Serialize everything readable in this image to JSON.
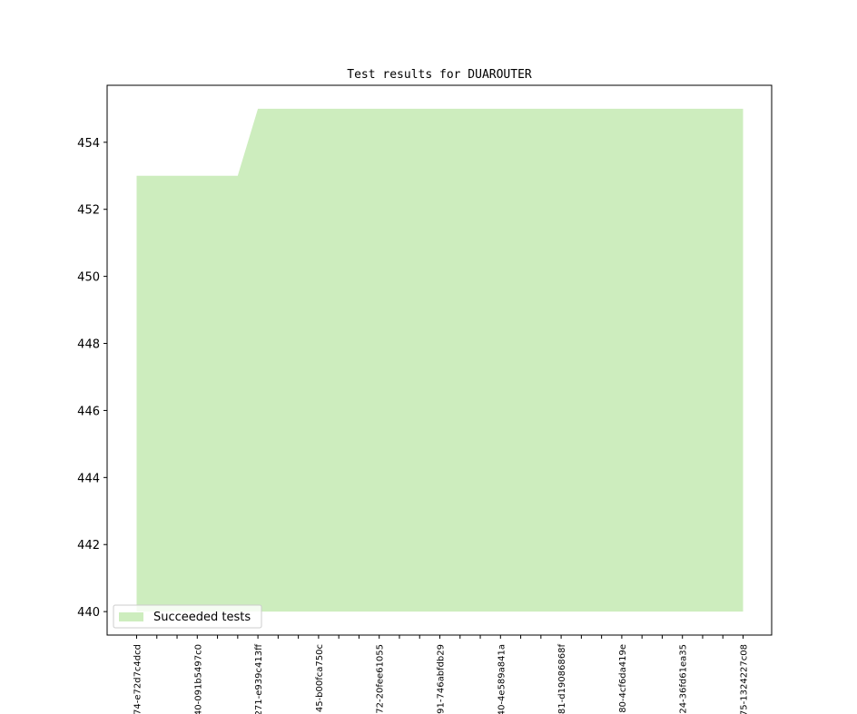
{
  "chart_data": {
    "type": "area",
    "title": "Test results for DUAROUTER",
    "xlabel": "",
    "ylabel": "",
    "ylim": [
      439.3,
      455.7
    ],
    "baseline": 440,
    "yticks": [
      440,
      442,
      444,
      446,
      448,
      450,
      452,
      454
    ],
    "x_tick_count": 31,
    "x_labels": [
      {
        "index": 0,
        "label": "74-e72d7c4dcd"
      },
      {
        "index": 3,
        "label": "40-091b5497c0"
      },
      {
        "index": 6,
        "label": "271-e939c413ff"
      },
      {
        "index": 9,
        "label": "45-b00fca750c"
      },
      {
        "index": 12,
        "label": "72-20fee61055"
      },
      {
        "index": 15,
        "label": "91-746abfdb29"
      },
      {
        "index": 18,
        "label": "40-4e589a841a"
      },
      {
        "index": 21,
        "label": "81-d19086868f"
      },
      {
        "index": 24,
        "label": "80-4cf6da419e"
      },
      {
        "index": 27,
        "label": "24-36fd61ea35"
      },
      {
        "index": 30,
        "label": "75-1324227c08"
      }
    ],
    "series": [
      {
        "name": "Succeeded tests",
        "color": "#cdedbe",
        "values": [
          453,
          453,
          453,
          453,
          453,
          453,
          455,
          455,
          455,
          455,
          455,
          455,
          455,
          455,
          455,
          455,
          455,
          455,
          455,
          455,
          455,
          455,
          455,
          455,
          455,
          455,
          455,
          455,
          455,
          455,
          455
        ]
      }
    ],
    "legend": {
      "placement": "lower-left"
    },
    "grid": false
  }
}
